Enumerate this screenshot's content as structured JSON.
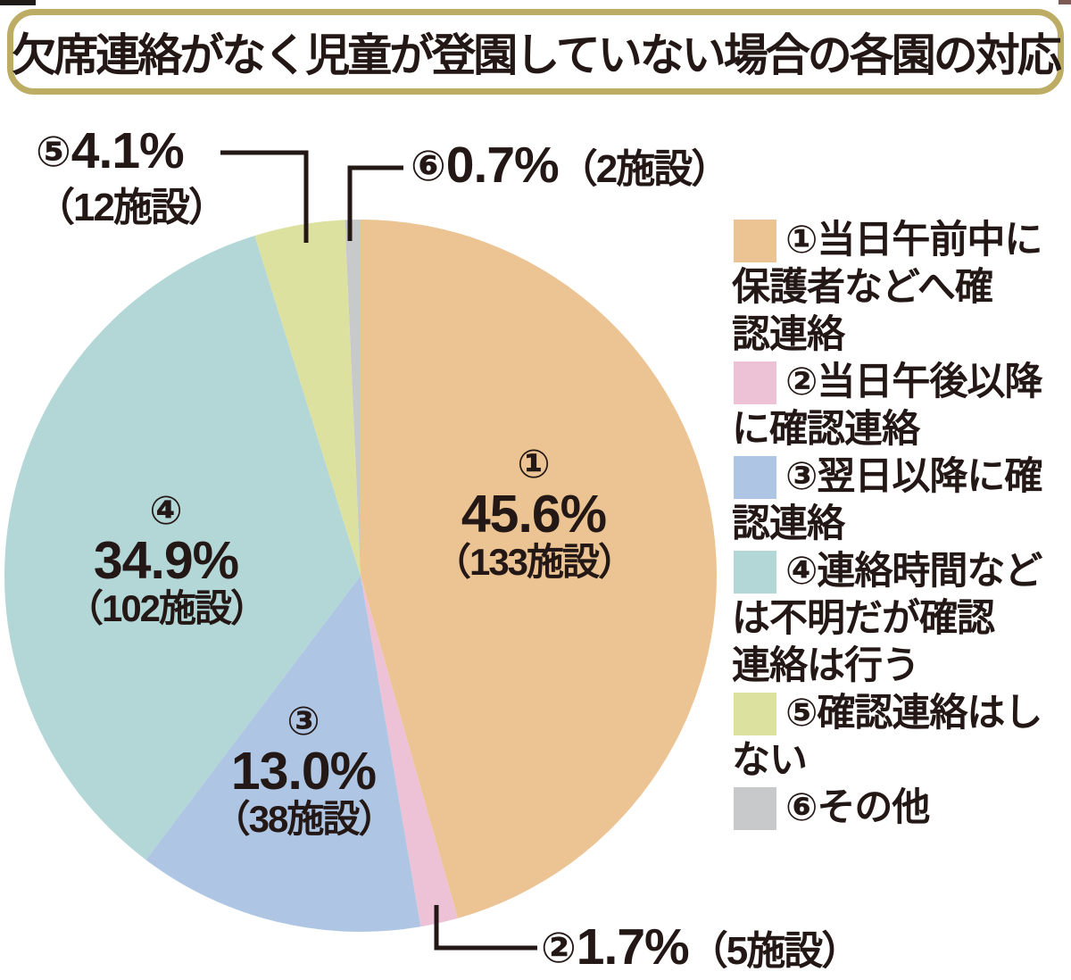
{
  "title": "欠席連絡がなく児童が登園していない場合の各園の対応",
  "colors": {
    "title_border": "#bdad64",
    "text": "#231815",
    "leader_line": "#231815",
    "background": "#ffffff"
  },
  "chart_data": {
    "type": "pie",
    "title": "欠席連絡がなく児童が登園していない場合の各園の対応",
    "unit": "施設",
    "direction": "clockwise",
    "start_angle_deg": -90,
    "legend_position": "right",
    "slices": [
      {
        "num": "①",
        "label": "当日午前中に保護者などへ確認連絡",
        "value_pct": 45.6,
        "facilities": 133,
        "pct_text": "45.6%",
        "count_text": "（133施設）",
        "color": "#ecc493"
      },
      {
        "num": "②",
        "label": "当日午後以降に確認連絡",
        "value_pct": 1.7,
        "facilities": 5,
        "pct_text": "1.7%",
        "count_text": "（5施設）",
        "color": "#edc2d7"
      },
      {
        "num": "③",
        "label": "翌日以降に確認連絡",
        "value_pct": 13.0,
        "facilities": 38,
        "pct_text": "13.0%",
        "count_text": "（38施設）",
        "color": "#aec6e3"
      },
      {
        "num": "④",
        "label": "連絡時間などは不明だが確認連絡は行う",
        "value_pct": 34.9,
        "facilities": 102,
        "pct_text": "34.9%",
        "count_text": "（102施設）",
        "color": "#b3d6d7"
      },
      {
        "num": "⑤",
        "label": "確認連絡はしない",
        "value_pct": 4.1,
        "facilities": 12,
        "pct_text": "4.1%",
        "count_text": "（12施設）",
        "color": "#dde1a0"
      },
      {
        "num": "⑥",
        "label": "その他",
        "value_pct": 0.7,
        "facilities": 2,
        "pct_text": "0.7%",
        "count_text": "（2施設）",
        "color": "#c7c9ca"
      }
    ]
  },
  "legend": {
    "items": [
      "①当日午前中に\n保護者などへ確\n認連絡",
      "②当日午後以降\nに確認連絡",
      "③翌日以降に確\n認連絡",
      "④連絡時間など\nは不明だが確認\n連絡は行う",
      "⑤確認連絡はし\nない",
      "⑥その他"
    ]
  }
}
